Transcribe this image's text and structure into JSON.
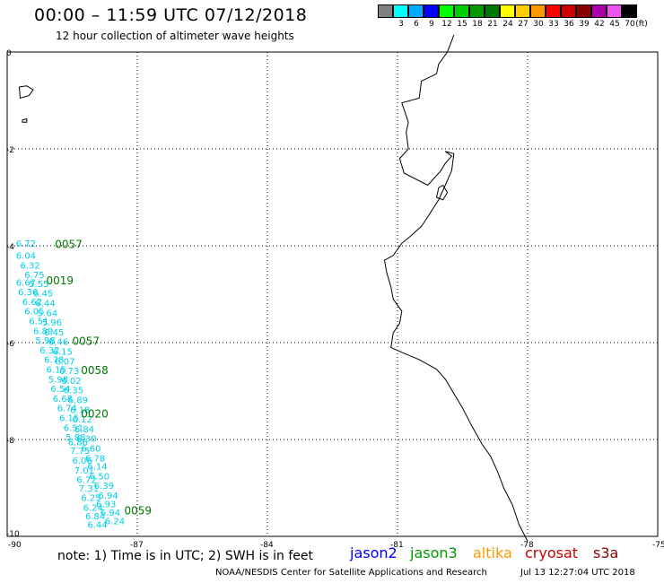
{
  "header": {
    "title": "00:00 – 11:59 UTC 07/12/2018",
    "subtitle": "12 hour collection of altimeter wave heights"
  },
  "legend": {
    "unit": "(ft)",
    "bins": [
      {
        "label": "",
        "color": "#808080"
      },
      {
        "label": "3",
        "color": "#00ffff"
      },
      {
        "label": "6",
        "color": "#00aaff"
      },
      {
        "label": "9",
        "color": "#0000ff"
      },
      {
        "label": "12",
        "color": "#00ff00"
      },
      {
        "label": "15",
        "color": "#00cc00"
      },
      {
        "label": "18",
        "color": "#009900"
      },
      {
        "label": "21",
        "color": "#007700"
      },
      {
        "label": "24",
        "color": "#ffff00"
      },
      {
        "label": "27",
        "color": "#ffcc00"
      },
      {
        "label": "30",
        "color": "#ff9900"
      },
      {
        "label": "33",
        "color": "#ff0000"
      },
      {
        "label": "36",
        "color": "#cc0000"
      },
      {
        "label": "39",
        "color": "#880000"
      },
      {
        "label": "42",
        "color": "#aa00aa"
      },
      {
        "label": "45",
        "color": "#ee55ee"
      },
      {
        "label": "70",
        "color": "#000000"
      }
    ]
  },
  "map": {
    "lon_ticks": [
      "-90",
      "-87",
      "-84",
      "-81",
      "-78",
      "-75"
    ],
    "lat_ticks": [
      "0",
      "-2",
      "-4",
      "-6",
      "-8",
      "-10"
    ],
    "swh_color": "#00d0e8",
    "time_color": "#007700"
  },
  "time_labels": [
    {
      "text": "0057",
      "lon": -88.9,
      "lat": -4.05
    },
    {
      "text": "0019",
      "lon": -89.1,
      "lat": -4.8
    },
    {
      "text": "0057",
      "lon": -88.5,
      "lat": -6.05
    },
    {
      "text": "0058",
      "lon": -88.3,
      "lat": -6.65
    },
    {
      "text": "0020",
      "lon": -88.3,
      "lat": -7.55
    },
    {
      "text": "0059",
      "lon": -87.3,
      "lat": -9.55
    }
  ],
  "swh_labels": [
    {
      "text": "6.72",
      "lon": -89.8,
      "lat": -4.02
    },
    {
      "text": "6.04",
      "lon": -89.8,
      "lat": -4.27
    },
    {
      "text": "6.32",
      "lon": -89.7,
      "lat": -4.47
    },
    {
      "text": "6.75",
      "lon": -89.6,
      "lat": -4.67
    },
    {
      "text": "6.67",
      "lon": -89.8,
      "lat": -4.82
    },
    {
      "text": "5.55",
      "lon": -89.5,
      "lat": -4.85
    },
    {
      "text": "6.36",
      "lon": -89.75,
      "lat": -5.02
    },
    {
      "text": "6.45",
      "lon": -89.4,
      "lat": -5.05
    },
    {
      "text": "6.62",
      "lon": -89.65,
      "lat": -5.22
    },
    {
      "text": "6.44",
      "lon": -89.35,
      "lat": -5.25
    },
    {
      "text": "6.05",
      "lon": -89.6,
      "lat": -5.42
    },
    {
      "text": "5.64",
      "lon": -89.3,
      "lat": -5.45
    },
    {
      "text": "6.51",
      "lon": -89.5,
      "lat": -5.62
    },
    {
      "text": "5.96",
      "lon": -89.2,
      "lat": -5.65
    },
    {
      "text": "6.89",
      "lon": -89.4,
      "lat": -5.82
    },
    {
      "text": "6.45",
      "lon": -89.15,
      "lat": -5.85
    },
    {
      "text": "5.98",
      "lon": -89.35,
      "lat": -6.02
    },
    {
      "text": "6.46",
      "lon": -89.05,
      "lat": -6.05
    },
    {
      "text": "6.32",
      "lon": -89.25,
      "lat": -6.22
    },
    {
      "text": "6.15",
      "lon": -88.95,
      "lat": -6.25
    },
    {
      "text": "6.78",
      "lon": -89.15,
      "lat": -6.42
    },
    {
      "text": "6.07",
      "lon": -88.9,
      "lat": -6.45
    },
    {
      "text": "6.15",
      "lon": -89.1,
      "lat": -6.62
    },
    {
      "text": "6.73",
      "lon": -88.8,
      "lat": -6.65
    },
    {
      "text": "5.98",
      "lon": -89.05,
      "lat": -6.82
    },
    {
      "text": "6.02",
      "lon": -88.75,
      "lat": -6.85
    },
    {
      "text": "6.54",
      "lon": -89.0,
      "lat": -7.02
    },
    {
      "text": "6.35",
      "lon": -88.7,
      "lat": -7.05
    },
    {
      "text": "6.68",
      "lon": -88.95,
      "lat": -7.22
    },
    {
      "text": "6.89",
      "lon": -88.6,
      "lat": -7.25
    },
    {
      "text": "6.74",
      "lon": -88.85,
      "lat": -7.42
    },
    {
      "text": "6.18",
      "lon": -88.55,
      "lat": -7.45
    },
    {
      "text": "6.15",
      "lon": -88.8,
      "lat": -7.62
    },
    {
      "text": "6.12",
      "lon": -88.5,
      "lat": -7.65
    },
    {
      "text": "6.51",
      "lon": -88.7,
      "lat": -7.82
    },
    {
      "text": "6.84",
      "lon": -88.45,
      "lat": -7.85
    },
    {
      "text": "5.88",
      "lon": -88.65,
      "lat": -8.02
    },
    {
      "text": "6.30",
      "lon": -88.4,
      "lat": -8.05
    },
    {
      "text": "6.86",
      "lon": -88.6,
      "lat": -8.12
    },
    {
      "text": "6.60",
      "lon": -88.3,
      "lat": -8.25
    },
    {
      "text": "7.75",
      "lon": -88.55,
      "lat": -8.3
    },
    {
      "text": "6.78",
      "lon": -88.2,
      "lat": -8.45
    },
    {
      "text": "6.06",
      "lon": -88.5,
      "lat": -8.5
    },
    {
      "text": "6.14",
      "lon": -88.15,
      "lat": -8.62
    },
    {
      "text": "7.01",
      "lon": -88.45,
      "lat": -8.7
    },
    {
      "text": "6.50",
      "lon": -88.1,
      "lat": -8.82
    },
    {
      "text": "6.72",
      "lon": -88.4,
      "lat": -8.9
    },
    {
      "text": "6.39",
      "lon": -88.0,
      "lat": -9.02
    },
    {
      "text": "7.31",
      "lon": -88.35,
      "lat": -9.07
    },
    {
      "text": "6.94",
      "lon": -87.9,
      "lat": -9.22
    },
    {
      "text": "6.25",
      "lon": -88.3,
      "lat": -9.27
    },
    {
      "text": "6.93",
      "lon": -87.95,
      "lat": -9.4
    },
    {
      "text": "6.24",
      "lon": -88.25,
      "lat": -9.47
    },
    {
      "text": "6.94",
      "lon": -87.85,
      "lat": -9.57
    },
    {
      "text": "6.84",
      "lon": -88.2,
      "lat": -9.65
    },
    {
      "text": "6.24",
      "lon": -87.75,
      "lat": -9.75
    },
    {
      "text": "6.44",
      "lon": -88.15,
      "lat": -9.82
    }
  ],
  "footer": {
    "note": "note: 1) Time is in UTC; 2) SWH is in feet",
    "satellites": [
      {
        "name": "jason2",
        "color": "#0000ff"
      },
      {
        "name": "jason3",
        "color": "#009900"
      },
      {
        "name": "altika",
        "color": "#ff9900"
      },
      {
        "name": "cryosat",
        "color": "#cc0000"
      },
      {
        "name": "s3a",
        "color": "#880000"
      }
    ],
    "credit": "NOAA/NESDIS Center for Satellite Applications and Research",
    "timestamp": "Jul 13 12:27:04 UTC 2018"
  }
}
